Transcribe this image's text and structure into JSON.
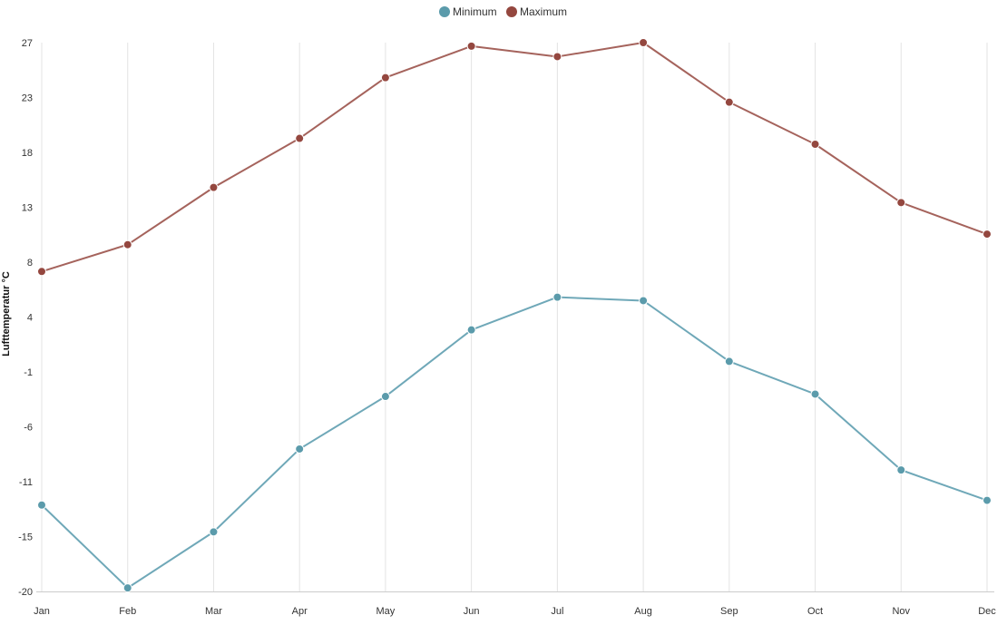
{
  "chart_data": {
    "type": "line",
    "title": "",
    "xlabel": "",
    "ylabel": "Lufttemperatur °C",
    "categories": [
      "Jan",
      "Feb",
      "Mar",
      "Apr",
      "May",
      "Jun",
      "Jul",
      "Aug",
      "Sep",
      "Oct",
      "Nov",
      "Dec"
    ],
    "y_ticks": [
      "27",
      "23",
      "18",
      "13",
      "8",
      "4",
      "-1",
      "-6",
      "-11",
      "-15",
      "-20"
    ],
    "ylim": [
      -20,
      27
    ],
    "grid": "vertical",
    "legend_position": "top-center",
    "series": [
      {
        "name": "Minimum",
        "color": "#6fa8b8",
        "marker_color": "#5b9bab",
        "values": [
          -12.6,
          -19.7,
          -14.9,
          -7.8,
          -3.3,
          2.4,
          5.2,
          4.9,
          -0.3,
          -3.1,
          -9.6,
          -12.2
        ]
      },
      {
        "name": "Maximum",
        "color": "#a5635c",
        "marker_color": "#94473f",
        "values": [
          7.4,
          9.7,
          14.6,
          18.8,
          24.0,
          26.7,
          25.8,
          27.0,
          21.9,
          18.3,
          13.3,
          10.6
        ]
      }
    ]
  }
}
